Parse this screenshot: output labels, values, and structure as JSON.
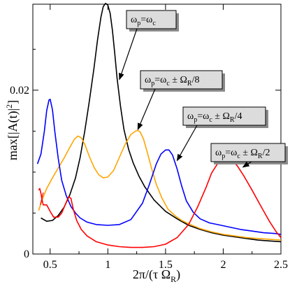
{
  "chart_data": {
    "type": "line",
    "title": "",
    "xlabel": "2π/(τ Ω_R)",
    "ylabel": "max[|A(t)|²]",
    "xlim": [
      0.35,
      2.5
    ],
    "ylim": [
      0,
      0.0305
    ],
    "x_ticks": [
      {
        "value": 0.5,
        "label": "0.5"
      },
      {
        "value": 1.0,
        "label": "1"
      },
      {
        "value": 1.5,
        "label": "1.5"
      },
      {
        "value": 2.0,
        "label": "2"
      },
      {
        "value": 2.5,
        "label": "2.5"
      }
    ],
    "y_ticks": [
      {
        "value": 0,
        "label": "0"
      },
      {
        "value": 0.02,
        "label": "0.02"
      }
    ],
    "grid": false,
    "legend": "none",
    "series": [
      {
        "color": "#000000",
        "x": [
          0.42,
          0.47,
          0.52,
          0.57,
          0.62,
          0.67,
          0.72,
          0.76,
          0.8,
          0.84,
          0.88,
          0.91,
          0.94,
          0.96,
          0.98,
          1.0,
          1.02,
          1.04,
          1.06,
          1.08,
          1.11,
          1.14,
          1.18,
          1.22,
          1.27,
          1.32,
          1.4,
          1.5,
          1.6,
          1.7,
          1.8,
          1.9,
          2.0,
          2.1,
          2.2,
          2.3,
          2.4,
          2.5
        ],
        "y": [
          0.0044,
          0.004,
          0.0041,
          0.0047,
          0.0057,
          0.0072,
          0.0093,
          0.0118,
          0.015,
          0.0187,
          0.0227,
          0.0261,
          0.0289,
          0.0302,
          0.0306,
          0.0304,
          0.0294,
          0.0273,
          0.0245,
          0.0215,
          0.018,
          0.0152,
          0.0128,
          0.0111,
          0.0095,
          0.0082,
          0.0066,
          0.0052,
          0.0043,
          0.0035,
          0.003,
          0.0026,
          0.0023,
          0.0021,
          0.0019,
          0.0017,
          0.0016,
          0.0015
        ]
      },
      {
        "color": "#ffa500",
        "x": [
          0.4,
          0.43,
          0.47,
          0.52,
          0.57,
          0.62,
          0.67,
          0.71,
          0.74,
          0.77,
          0.8,
          0.84,
          0.88,
          0.92,
          0.96,
          1.0,
          1.05,
          1.1,
          1.15,
          1.2,
          1.24,
          1.26,
          1.28,
          1.31,
          1.34,
          1.38,
          1.42,
          1.47,
          1.52,
          1.58,
          1.64,
          1.7,
          1.8,
          1.9,
          2.0,
          2.1,
          2.2,
          2.3,
          2.4,
          2.5
        ],
        "y": [
          0.0053,
          0.0066,
          0.008,
          0.0093,
          0.0105,
          0.0117,
          0.013,
          0.014,
          0.0144,
          0.0142,
          0.0134,
          0.0119,
          0.0106,
          0.0097,
          0.0093,
          0.0094,
          0.0102,
          0.0118,
          0.0134,
          0.0146,
          0.015,
          0.0151,
          0.0149,
          0.014,
          0.0125,
          0.0104,
          0.0085,
          0.0068,
          0.0055,
          0.0047,
          0.0041,
          0.0037,
          0.0031,
          0.0027,
          0.0024,
          0.0022,
          0.002,
          0.0019,
          0.0018,
          0.0017
        ]
      },
      {
        "color": "#0000ff",
        "x": [
          0.39,
          0.42,
          0.45,
          0.47,
          0.49,
          0.5,
          0.52,
          0.54,
          0.57,
          0.6,
          0.64,
          0.68,
          0.72,
          0.76,
          0.82,
          0.9,
          1.0,
          1.1,
          1.2,
          1.3,
          1.36,
          1.42,
          1.46,
          1.5,
          1.53,
          1.56,
          1.6,
          1.64,
          1.68,
          1.74,
          1.8,
          1.88,
          1.95,
          2.05,
          2.15,
          2.25,
          2.35,
          2.45,
          2.5
        ],
        "y": [
          0.011,
          0.0122,
          0.015,
          0.0175,
          0.0188,
          0.0189,
          0.0176,
          0.015,
          0.0117,
          0.009,
          0.0071,
          0.0058,
          0.005,
          0.0044,
          0.0039,
          0.0036,
          0.0035,
          0.0036,
          0.0042,
          0.0062,
          0.0085,
          0.011,
          0.0122,
          0.0127,
          0.0127,
          0.0121,
          0.0104,
          0.0083,
          0.0065,
          0.0051,
          0.0043,
          0.0038,
          0.0036,
          0.0033,
          0.003,
          0.0028,
          0.0026,
          0.0025,
          0.0024
        ]
      },
      {
        "color": "#ff0000",
        "x": [
          0.4,
          0.41,
          0.42,
          0.43,
          0.44,
          0.47,
          0.5,
          0.53,
          0.57,
          0.6,
          0.63,
          0.66,
          0.68,
          0.7,
          0.73,
          0.77,
          0.82,
          0.9,
          1.0,
          1.1,
          1.2,
          1.3,
          1.4,
          1.5,
          1.6,
          1.7,
          1.78,
          1.85,
          1.9,
          1.95,
          1.99,
          2.03,
          2.07,
          2.12,
          2.18,
          2.25,
          2.32,
          2.4,
          2.46,
          2.5
        ],
        "y": [
          0.0078,
          0.008,
          0.0074,
          0.0066,
          0.006,
          0.006,
          0.0052,
          0.0045,
          0.0045,
          0.005,
          0.006,
          0.007,
          0.0068,
          0.0055,
          0.0041,
          0.003,
          0.0022,
          0.0015,
          0.0011,
          0.0009,
          0.0008,
          0.0008,
          0.0009,
          0.0012,
          0.002,
          0.0036,
          0.0058,
          0.0081,
          0.0099,
          0.011,
          0.0116,
          0.0117,
          0.0115,
          0.0108,
          0.0095,
          0.0078,
          0.006,
          0.004,
          0.0027,
          0.002
        ]
      }
    ],
    "annotations": [
      {
        "text": "ω_p=ω_c",
        "target": {
          "x": 1.1,
          "y": 0.0213
        }
      },
      {
        "text": "ω_p=ω_c ± Ω_R/8",
        "target": {
          "x": 1.26,
          "y": 0.0152
        }
      },
      {
        "text": "ω_p=ω_c ± Ω_R/4",
        "target": {
          "x": 1.6,
          "y": 0.0114
        }
      },
      {
        "text": "ω_p=ω_c ± Ω_R/2",
        "target": {
          "x": 2.17,
          "y": 0.0106
        }
      }
    ]
  },
  "labels": {
    "xlabel_main": "2π/(τ Ω",
    "xlabel_sub": "R",
    "xlabel_close": ")",
    "ylabel_main": "max[|A(t)|",
    "ylabel_sup": "2",
    "ylabel_close": "]"
  },
  "annotation_text": [
    {
      "a": "ω",
      "a_sub": "p",
      "b": "=ω",
      "b_sub": "c",
      "c": "",
      "c_sub": "",
      "d": ""
    },
    {
      "a": "ω",
      "a_sub": "p",
      "b": "=ω",
      "b_sub": "c",
      "c": "± Ω",
      "c_sub": "R",
      "d": "/8"
    },
    {
      "a": "ω",
      "a_sub": "p",
      "b": "=ω",
      "b_sub": "c",
      "c": "± Ω",
      "c_sub": "R",
      "d": "/4"
    },
    {
      "a": "ω",
      "a_sub": "p",
      "b": "=ω",
      "b_sub": "c",
      "c": "± Ω",
      "c_sub": "R",
      "d": "/2"
    }
  ]
}
